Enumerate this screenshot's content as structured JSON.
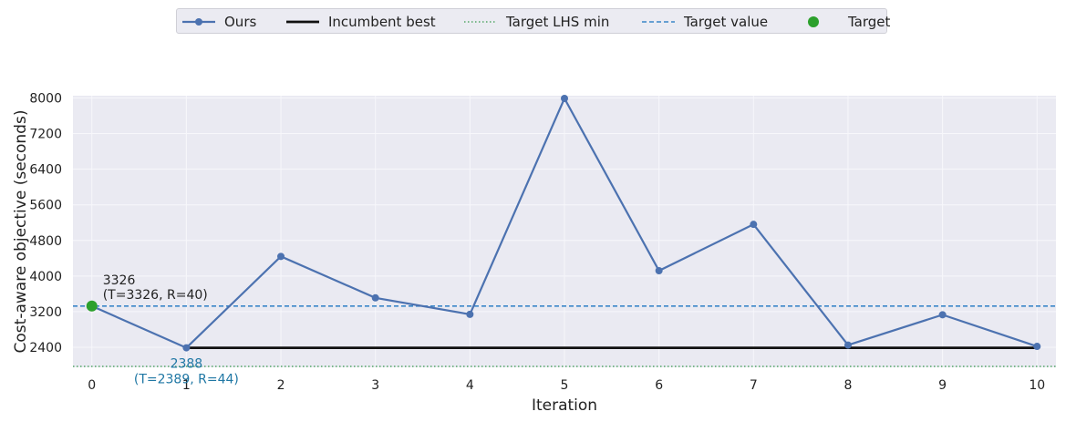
{
  "chart_data": {
    "type": "line",
    "xlabel": "Iteration",
    "ylabel": "Cost-aware objective (seconds)",
    "xlim": [
      -0.2,
      10.2
    ],
    "ylim": [
      1950,
      8050
    ],
    "xticks": [
      0,
      1,
      2,
      3,
      4,
      5,
      6,
      7,
      8,
      9,
      10
    ],
    "yticks": [
      2400,
      3200,
      4000,
      4800,
      5600,
      6400,
      7200,
      8000
    ],
    "grid": true,
    "legend_placement": "top-center",
    "x": [
      0,
      1,
      2,
      3,
      4,
      5,
      6,
      7,
      8,
      9,
      10
    ],
    "series": [
      {
        "name": "Ours",
        "values": [
          3326,
          2388,
          4440,
          3510,
          3140,
          8040,
          4120,
          5160,
          2450,
          3130,
          2420
        ],
        "color": "#4c72b0"
      },
      {
        "name": "Incumbent best",
        "values": [
          null,
          2388,
          2388,
          2388,
          2388,
          2388,
          2388,
          2388,
          2388,
          2388,
          2388
        ],
        "color": "#111111"
      }
    ],
    "hlines": [
      {
        "name": "Target LHS min",
        "y": 1800,
        "color": "#55a868",
        "style": "dotted"
      },
      {
        "name": "Target value",
        "y": 3326,
        "color": "#3a86c8",
        "style": "dashed"
      }
    ],
    "target_point": {
      "name": "Target",
      "x": 0,
      "y": 3326,
      "color": "#2ca02c"
    },
    "annotations": [
      {
        "x": 0,
        "y": 3326,
        "line1": "3326",
        "line2": "(T=3326, R=40)",
        "color": "#222222"
      },
      {
        "x": 1,
        "y": 2388,
        "line1": "2388",
        "line2": "(T=2389, R=44)",
        "color": "#1f77a4"
      }
    ]
  },
  "legend": {
    "items": [
      {
        "label": "Ours"
      },
      {
        "label": "Incumbent best"
      },
      {
        "label": "Target LHS min"
      },
      {
        "label": "Target value"
      },
      {
        "label": "Target"
      }
    ]
  }
}
